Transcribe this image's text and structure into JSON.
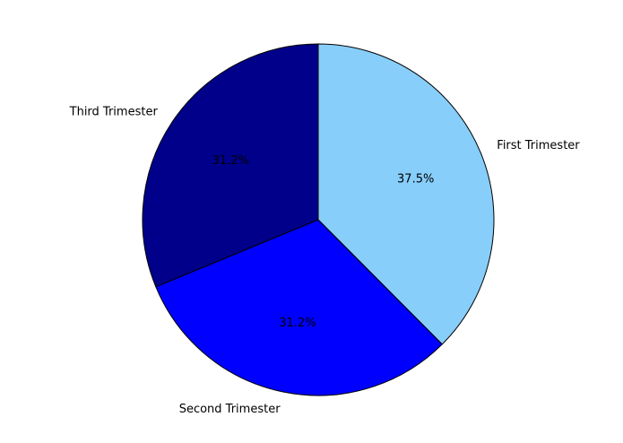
{
  "chart_data": {
    "type": "pie",
    "categories": [
      "First Trimester",
      "Second Trimester",
      "Third Trimester"
    ],
    "values": [
      37.5,
      31.2,
      31.2
    ],
    "percent_labels": [
      "37.5%",
      "31.2%",
      "31.2%"
    ],
    "colors": [
      "#87CEFA",
      "#0000FF",
      "#00008B"
    ],
    "start_angle_deg": 90,
    "direction": "clockwise",
    "legend": "none"
  }
}
